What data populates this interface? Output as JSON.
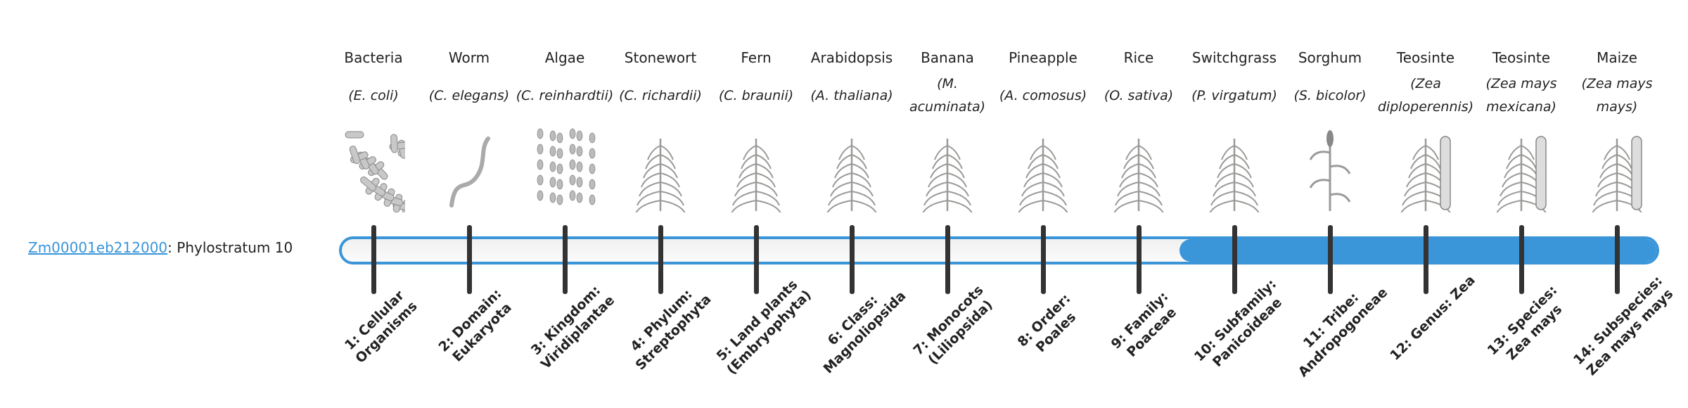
{
  "gene": {
    "id": "Zm00001eb212000",
    "separator": ":",
    "text": " Phylostratum 10"
  },
  "phylostratum": {
    "value": 10,
    "total": 14
  },
  "colors": {
    "accent": "#3a95d9",
    "tick": "#333333",
    "bar_bg": "#f4f4f4"
  },
  "organisms": [
    {
      "common": "Bacteria",
      "sci": "(E. coli)",
      "icon": "bacteria-icon",
      "rank": "1: Cellular Organisms"
    },
    {
      "common": "Worm",
      "sci": "(C. elegans)",
      "icon": "worm-icon",
      "rank": "2: Domain: Eukaryota"
    },
    {
      "common": "Algae",
      "sci": "(C. reinhardtii)",
      "icon": "algae-icon",
      "rank": "3: Kingdom: Viridiplantae"
    },
    {
      "common": "Stonewort",
      "sci": "(C. richardii)",
      "icon": "stonewort-icon",
      "rank": "4: Phylum: Streptophyta"
    },
    {
      "common": "Fern",
      "sci": "(C. braunii)",
      "icon": "fern-icon",
      "rank": "5: Land plants (Embryophyta)"
    },
    {
      "common": "Arabidopsis",
      "sci": "(A. thaliana)",
      "icon": "arabidopsis-icon",
      "rank": "6: Class: Magnoliopsida"
    },
    {
      "common": "Banana",
      "sci": "(M. acuminata)",
      "icon": "banana-plant-icon",
      "rank": "7: Monocots (Liliopsida)"
    },
    {
      "common": "Pineapple",
      "sci": "(A. comosus)",
      "icon": "pineapple-icon",
      "rank": "8: Order: Poales"
    },
    {
      "common": "Rice",
      "sci": "(O. sativa)",
      "icon": "rice-icon",
      "rank": "9: Family: Poaceae"
    },
    {
      "common": "Switchgrass",
      "sci": "(P. virgatum)",
      "icon": "switchgrass-icon",
      "rank": "10: Subfamily: Panicoideae"
    },
    {
      "common": "Sorghum",
      "sci": "(S. bicolor)",
      "icon": "sorghum-icon",
      "rank": "11: Tribe: Andropogoneae"
    },
    {
      "common": "Teosinte",
      "sci": "(Zea diploperennis)",
      "icon": "teosinte-icon",
      "rank": "12: Genus: Zea"
    },
    {
      "common": "Teosinte",
      "sci": "(Zea mays mexicana)",
      "icon": "teosinte-mexicana-icon",
      "rank": "13: Species: Zea mays"
    },
    {
      "common": "Maize",
      "sci": "(Zea mays mays)",
      "icon": "maize-icon",
      "rank": "14: Subspecies: Zea mays mays"
    }
  ]
}
